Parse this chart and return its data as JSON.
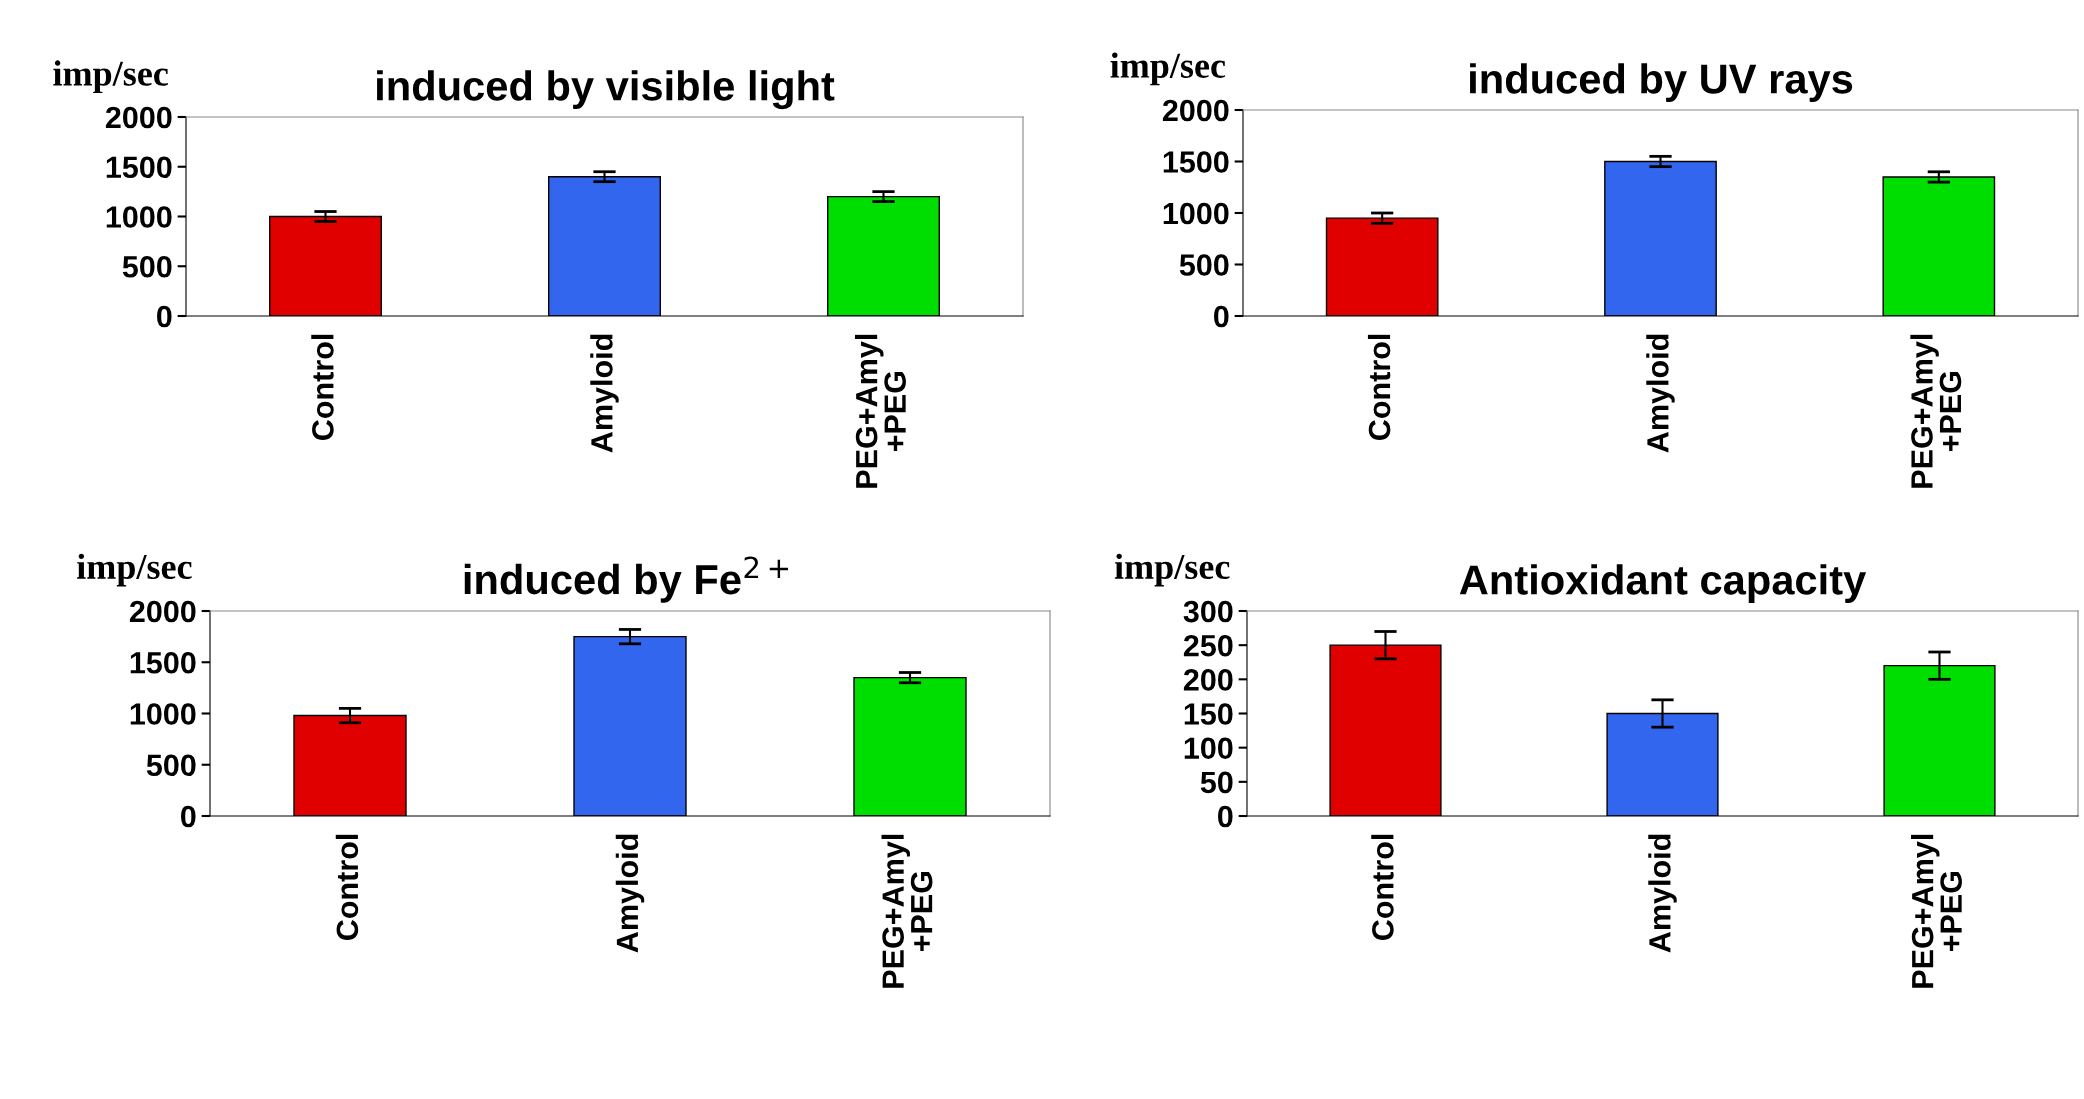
{
  "chart_data": [
    {
      "type": "bar",
      "title": "induced by visible light",
      "ylabel": "imp/sec",
      "categories": [
        "Control",
        "Amyloid",
        "PEG+Amyl\n+PEG"
      ],
      "values": [
        1000,
        1400,
        1200
      ],
      "errors": [
        50,
        50,
        50
      ],
      "colors": [
        "#e00000",
        "#3366ee",
        "#00dd00"
      ],
      "ylim": [
        0,
        2000
      ],
      "yticks": [
        0,
        500,
        1000,
        1500,
        2000
      ]
    },
    {
      "type": "bar",
      "title": "induced by UV rays",
      "ylabel": "imp/sec",
      "categories": [
        "Control",
        "Amyloid",
        "PEG+Amyl\n+PEG"
      ],
      "values": [
        950,
        1500,
        1350
      ],
      "errors": [
        50,
        50,
        50
      ],
      "colors": [
        "#e00000",
        "#3366ee",
        "#00dd00"
      ],
      "ylim": [
        0,
        2000
      ],
      "yticks": [
        0,
        500,
        1000,
        1500,
        2000
      ]
    },
    {
      "type": "bar",
      "title": "induced by Fe$^{2+}$",
      "ylabel": "imp/sec",
      "categories": [
        "Control",
        "Amyloid",
        "PEG+Amyl\n+PEG"
      ],
      "values": [
        980,
        1750,
        1350
      ],
      "errors": [
        70,
        70,
        50
      ],
      "colors": [
        "#e00000",
        "#3366ee",
        "#00dd00"
      ],
      "ylim": [
        0,
        2000
      ],
      "yticks": [
        0,
        500,
        1000,
        1500,
        2000
      ]
    },
    {
      "type": "bar",
      "title": "Antioxidant capacity",
      "ylabel": "imp/sec",
      "categories": [
        "Control",
        "Amyloid",
        "PEG+Amyl\n+PEG"
      ],
      "values": [
        250,
        150,
        220
      ],
      "errors": [
        20,
        20,
        20
      ],
      "colors": [
        "#e00000",
        "#3366ee",
        "#00dd00"
      ],
      "ylim": [
        0,
        300
      ],
      "yticks": [
        0,
        50,
        100,
        150,
        200,
        250,
        300
      ]
    }
  ]
}
